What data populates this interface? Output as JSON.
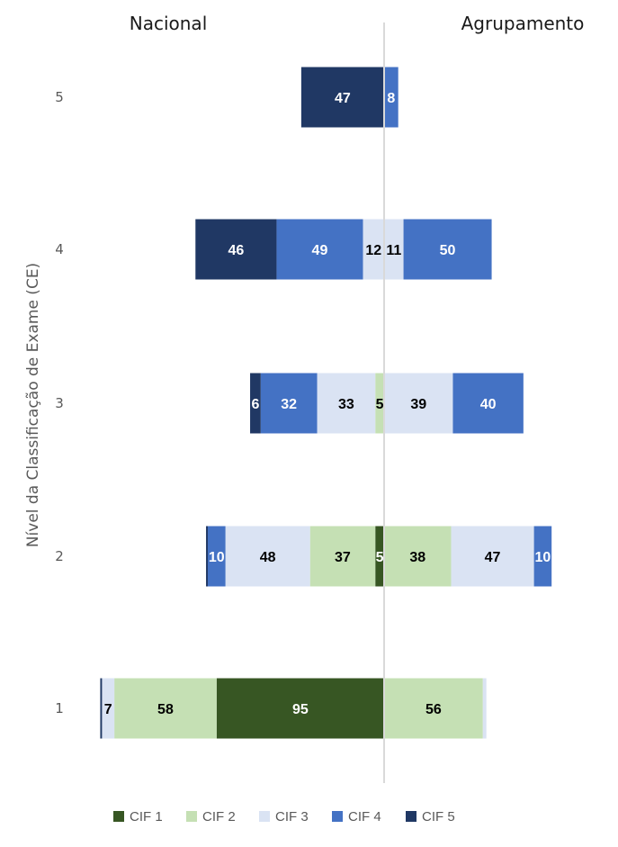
{
  "chart_data": {
    "type": "bar",
    "orientation": "horizontal",
    "stacked": "diverging",
    "left_header": "Nacional",
    "right_header": "Agrupamento",
    "ylabel": "Nível da Classificação de Exame (CE)",
    "categories": [
      "1",
      "2",
      "3",
      "4",
      "5"
    ],
    "series": [
      {
        "name": "CIF 1",
        "color": "#375623",
        "nacional": [
          95,
          5,
          0,
          0,
          0
        ],
        "agrupamento": [
          0,
          0,
          0,
          0,
          0
        ]
      },
      {
        "name": "CIF 2",
        "color": "#C5E0B4",
        "nacional": [
          58,
          37,
          5,
          0,
          0
        ],
        "agrupamento": [
          56,
          38,
          0,
          0,
          0
        ]
      },
      {
        "name": "CIF 3",
        "color": "#DAE3F3",
        "nacional": [
          7,
          48,
          33,
          12,
          0
        ],
        "agrupamento": [
          2,
          47,
          39,
          11,
          0
        ]
      },
      {
        "name": "CIF 4",
        "color": "#4472C4",
        "nacional": [
          0,
          10,
          32,
          49,
          0
        ],
        "agrupamento": [
          0,
          10,
          40,
          50,
          8
        ]
      },
      {
        "name": "CIF 5",
        "color": "#203864",
        "nacional": [
          1,
          1,
          6,
          46,
          47
        ],
        "agrupamento": [
          0,
          0,
          0,
          0,
          0
        ]
      }
    ],
    "segment_labels": {
      "nacional": [
        [
          {
            "series": 4,
            "text": ""
          },
          {
            "series": 2,
            "text": "7"
          },
          {
            "series": 1,
            "text": "58"
          },
          {
            "series": 0,
            "text": "95"
          }
        ],
        [
          {
            "series": 4,
            "text": ""
          },
          {
            "series": 3,
            "text": "10"
          },
          {
            "series": 2,
            "text": "48"
          },
          {
            "series": 1,
            "text": "37"
          },
          {
            "series": 0,
            "text": "5"
          }
        ],
        [
          {
            "series": 4,
            "text": "6"
          },
          {
            "series": 3,
            "text": "32"
          },
          {
            "series": 2,
            "text": "33"
          },
          {
            "series": 1,
            "text": "5"
          }
        ],
        [
          {
            "series": 4,
            "text": "46"
          },
          {
            "series": 3,
            "text": "49"
          },
          {
            "series": 2,
            "text": "12"
          }
        ],
        [
          {
            "series": 4,
            "text": "47"
          }
        ]
      ],
      "agrupamento": [
        [
          {
            "series": 1,
            "text": "56"
          },
          {
            "series": 2,
            "text": ""
          }
        ],
        [
          {
            "series": 1,
            "text": "38"
          },
          {
            "series": 2,
            "text": "47"
          },
          {
            "series": 3,
            "text": "10"
          }
        ],
        [
          {
            "series": 2,
            "text": "39"
          },
          {
            "series": 3,
            "text": "40"
          }
        ],
        [
          {
            "series": 2,
            "text": "11"
          },
          {
            "series": 3,
            "text": "50"
          }
        ],
        [
          {
            "series": 3,
            "text": "8"
          }
        ]
      ]
    },
    "legend": {
      "position": "bottom",
      "entries": [
        "CIF 1",
        "CIF 2",
        "CIF 3",
        "CIF 4",
        "CIF 5"
      ]
    },
    "grid": false
  }
}
